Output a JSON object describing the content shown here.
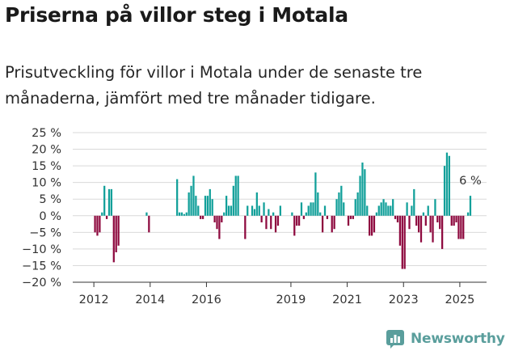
{
  "title": "Priserna på villor steg i Motala",
  "subtitle": "Prisutveckling för villor i Motala under de senaste tre månaderna, jämfört med tre månader tidigare.",
  "brand": "Newsworthy",
  "colors": {
    "positive": "#12a09a",
    "negative": "#8e0a3f",
    "brand": "#5a9e9c"
  },
  "chart_data": {
    "type": "bar",
    "ylim": [
      -20,
      25
    ],
    "yticks": [
      25,
      20,
      15,
      10,
      5,
      0,
      -5,
      -10,
      -15,
      -20
    ],
    "ytick_labels": [
      "25 %",
      "20 %",
      "15 %",
      "10 %",
      "5 %",
      "0 %",
      "−5 %",
      "−10 %",
      "−15 %",
      "−20 %"
    ],
    "xticks": [
      "2012",
      "2014",
      "2016",
      "2019",
      "2021",
      "2023",
      "2025"
    ],
    "annotation": {
      "text": "6 %",
      "x": "2025-05",
      "value": 6
    },
    "x": [
      "2012-01",
      "2012-02",
      "2012-03",
      "2012-04",
      "2012-05",
      "2012-06",
      "2012-07",
      "2012-08",
      "2012-09",
      "2012-10",
      "2012-11",
      "2012-12",
      "2013-01",
      "2013-02",
      "2013-03",
      "2013-04",
      "2013-05",
      "2013-06",
      "2013-07",
      "2013-08",
      "2013-09",
      "2013-10",
      "2013-11",
      "2013-12",
      "2014-01",
      "2014-02",
      "2014-03",
      "2014-04",
      "2014-05",
      "2014-06",
      "2014-07",
      "2014-08",
      "2014-09",
      "2014-10",
      "2014-11",
      "2014-12",
      "2015-01",
      "2015-02",
      "2015-03",
      "2015-04",
      "2015-05",
      "2015-06",
      "2015-07",
      "2015-08",
      "2015-09",
      "2015-10",
      "2015-11",
      "2015-12",
      "2016-01",
      "2016-02",
      "2016-03",
      "2016-04",
      "2016-05",
      "2016-06",
      "2016-07",
      "2016-08",
      "2016-09",
      "2016-10",
      "2016-11",
      "2016-12",
      "2017-01",
      "2017-02",
      "2017-03",
      "2017-04",
      "2017-05",
      "2017-06",
      "2017-07",
      "2017-08",
      "2017-09",
      "2017-10",
      "2017-11",
      "2017-12",
      "2018-01",
      "2018-02",
      "2018-03",
      "2018-04",
      "2018-05",
      "2018-06",
      "2018-07",
      "2018-08",
      "2018-09",
      "2018-10",
      "2018-11",
      "2018-12",
      "2019-01",
      "2019-02",
      "2019-03",
      "2019-04",
      "2019-05",
      "2019-06",
      "2019-07",
      "2019-08",
      "2019-09",
      "2019-10",
      "2019-11",
      "2019-12",
      "2020-01",
      "2020-02",
      "2020-03",
      "2020-04",
      "2020-05",
      "2020-06",
      "2020-07",
      "2020-08",
      "2020-09",
      "2020-10",
      "2020-11",
      "2020-12",
      "2021-01",
      "2021-02",
      "2021-03",
      "2021-04",
      "2021-05",
      "2021-06",
      "2021-07",
      "2021-08",
      "2021-09",
      "2021-10",
      "2021-11",
      "2021-12",
      "2022-01",
      "2022-02",
      "2022-03",
      "2022-04",
      "2022-05",
      "2022-06",
      "2022-07",
      "2022-08",
      "2022-09",
      "2022-10",
      "2022-11",
      "2022-12",
      "2023-01",
      "2023-02",
      "2023-03",
      "2023-04",
      "2023-05",
      "2023-06",
      "2023-07",
      "2023-08",
      "2023-09",
      "2023-10",
      "2023-11",
      "2023-12",
      "2024-01",
      "2024-02",
      "2024-03",
      "2024-04",
      "2024-05",
      "2024-06",
      "2024-07",
      "2024-08",
      "2024-09",
      "2024-10",
      "2024-11",
      "2024-12",
      "2025-01",
      "2025-02",
      "2025-03",
      "2025-04",
      "2025-05"
    ],
    "values": [
      -5,
      -6,
      -5,
      1,
      9,
      -1,
      8,
      8,
      -14,
      -11,
      -9,
      null,
      null,
      null,
      null,
      null,
      null,
      null,
      null,
      null,
      null,
      null,
      1,
      -5,
      null,
      null,
      null,
      null,
      null,
      null,
      null,
      null,
      null,
      null,
      null,
      11,
      1,
      1,
      0.5,
      1,
      7,
      9,
      12,
      6,
      3,
      -1,
      -1,
      6,
      6,
      8,
      5,
      -2,
      -4,
      -7,
      -2,
      1,
      6,
      3,
      3,
      9,
      12,
      12,
      null,
      null,
      -7,
      3,
      null,
      3,
      2,
      7,
      3,
      -2,
      4,
      -4,
      2,
      -4,
      1,
      -5,
      -3,
      3,
      null,
      null,
      null,
      null,
      1,
      -6,
      -3,
      -3,
      4,
      -1,
      1,
      3,
      4,
      4,
      13,
      7,
      1,
      -5,
      3,
      -1,
      null,
      -5,
      -4,
      5,
      7,
      9,
      4,
      null,
      -3,
      -1,
      -1,
      5,
      7,
      12,
      16,
      14,
      3,
      -6,
      -6,
      -5,
      1,
      3,
      4,
      5,
      4,
      3,
      3,
      5,
      -1,
      -2,
      -9,
      -16,
      -16,
      4,
      -4,
      3,
      8,
      -3,
      -5,
      -8,
      1,
      -3,
      3,
      -5,
      -8,
      5,
      -2,
      -4,
      -10,
      15,
      19,
      18,
      -3,
      -3,
      -2,
      -7,
      -7,
      -7,
      null,
      1,
      6
    ]
  }
}
